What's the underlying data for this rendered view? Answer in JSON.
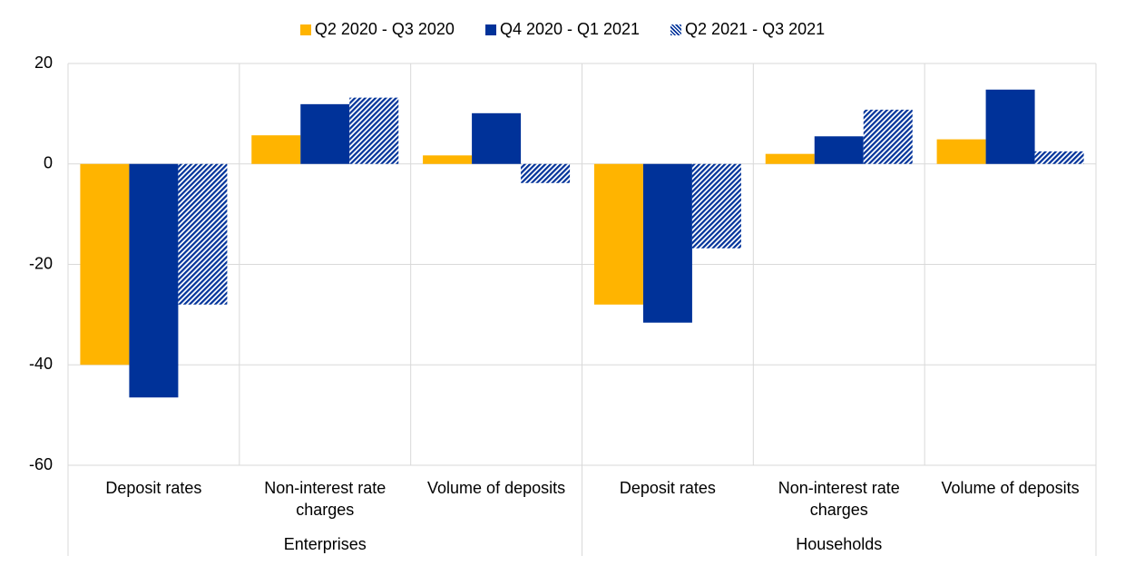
{
  "chart_data": {
    "type": "bar",
    "categories": [
      "Deposit rates",
      "Non-interest rate charges",
      "Volume of deposits",
      "Deposit rates",
      "Non-interest rate charges",
      "Volume of deposits"
    ],
    "groups": [
      "Enterprises",
      "Households"
    ],
    "series": [
      {
        "name": "Q2 2020 - Q3 2020",
        "color": "#ffb400",
        "pattern": "solid",
        "values": [
          -40,
          5.7,
          1.7,
          -28,
          2.0,
          4.9
        ]
      },
      {
        "name": "Q4 2020 - Q1 2021",
        "color": "#003299",
        "pattern": "solid",
        "values": [
          -46.5,
          11.9,
          10.1,
          -31.6,
          5.5,
          14.8
        ]
      },
      {
        "name": "Q2 2021 - Q3 2021",
        "color": "#003299",
        "pattern": "hatch",
        "values": [
          -28,
          13.2,
          -3.8,
          -16.8,
          10.8,
          2.5
        ]
      }
    ],
    "ylim": [
      -60,
      20
    ],
    "yticks": [
      -60,
      -40,
      -20,
      0,
      20
    ],
    "grid": true,
    "legend": "top"
  }
}
